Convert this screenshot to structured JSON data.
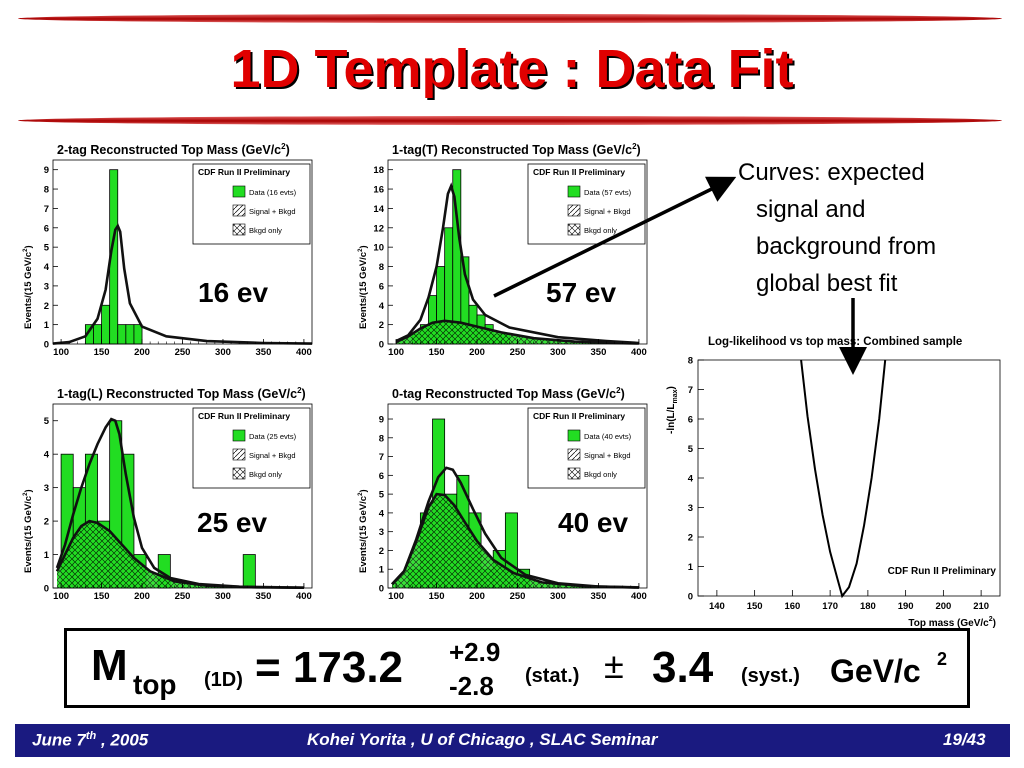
{
  "slide": {
    "title": "1D Template : Data Fit",
    "annotation_lines": [
      "Curves: expected",
      "signal and",
      "background from",
      "global best fit"
    ]
  },
  "colors": {
    "title": "#e00000",
    "rule": "#b00000",
    "footer_bg": "#1a1a80",
    "hist_fill": "#22dd22"
  },
  "legend": {
    "stamp": "CDF Run II Preliminary",
    "signal_bkgd": "Signal + Bkgd",
    "bkgd_only": "Bkgd only"
  },
  "panels": [
    {
      "title": "2-tag Reconstructed Top Mass (GeV/c",
      "title_sup": "2",
      "title_close": ")",
      "ylabel": "Events/(15 GeV/c",
      "ylabel_sup": "2",
      "ylabel_close": ")",
      "data_legend": "Data (16 evts)",
      "count_label": "16 ev"
    },
    {
      "title": "1-tag(T) Reconstructed Top Mass (GeV/c",
      "title_sup": "2",
      "title_close": ")",
      "ylabel": "Events/(15 GeV/c",
      "ylabel_sup": "2",
      "ylabel_close": ")",
      "data_legend": "Data (57 evts)",
      "count_label": "57 ev"
    },
    {
      "title": "1-tag(L) Reconstructed Top Mass (GeV/c",
      "title_sup": "2",
      "title_close": ")",
      "ylabel": "Events/(15 GeV/c",
      "ylabel_sup": "2",
      "ylabel_close": ")",
      "data_legend": "Data (25 evts)",
      "count_label": "25 ev"
    },
    {
      "title": "0-tag Reconstructed Top Mass (GeV/c",
      "title_sup": "2",
      "title_close": ")",
      "ylabel": "Events/(15 GeV/c",
      "ylabel_sup": "2",
      "ylabel_close": ")",
      "data_legend": "Data (40 evts)",
      "count_label": "40 ev"
    }
  ],
  "likelihood": {
    "title": "Log-likelihood vs top mass: Combined sample",
    "ylabel": "-ln(L/L",
    "ylabel_sub": "max",
    "ylabel_close": ")",
    "xlabel": "Top mass (GeV/c",
    "xlabel_sup": "2",
    "xlabel_close": ")",
    "stamp": "CDF Run II Preliminary"
  },
  "result": {
    "symbol": "M",
    "subscript": "top",
    "method": "(1D)",
    "equals_value": "= 173.2",
    "stat_plus": "+2.9",
    "stat_minus": "-2.8",
    "stat_label": "(stat.)",
    "plusminus": "±",
    "syst_value": "3.4",
    "syst_label": "(syst.)",
    "unit": "GeV/c",
    "unit_sup": "2"
  },
  "footer": {
    "date_prefix": "June 7",
    "date_sup": "th",
    "date_suffix": " , 2005",
    "center": "Kohei Yorita , U of Chicago , SLAC Seminar",
    "page": "19/43"
  },
  "chart_data": [
    {
      "type": "bar",
      "title": "2-tag Reconstructed Top Mass (GeV/c2)",
      "xlabel": "",
      "ylabel": "Events/(15 GeV/c2)",
      "xlim": [
        90,
        410
      ],
      "ylim": [
        0,
        9.5
      ],
      "x_ticks": [
        100,
        150,
        200,
        250,
        300,
        350,
        400
      ],
      "y_ticks": [
        0,
        1,
        2,
        3,
        4,
        5,
        6,
        7,
        8,
        9
      ],
      "bin_width": 10,
      "bin_edges_start": [
        130,
        140,
        150,
        160,
        170,
        180,
        190
      ],
      "series": [
        {
          "name": "Data (16 evts)",
          "values": [
            1,
            1,
            2,
            9,
            1,
            1,
            1
          ]
        }
      ],
      "curves": [
        {
          "name": "Signal + Bkgd",
          "x": [
            90,
            110,
            130,
            145,
            155,
            162,
            167,
            170,
            173,
            178,
            185,
            200,
            230,
            280,
            350,
            410
          ],
          "y": [
            0.02,
            0.1,
            0.4,
            1.3,
            2.8,
            4.8,
            5.9,
            6.1,
            5.8,
            3.9,
            2.1,
            0.9,
            0.4,
            0.15,
            0.05,
            0.02
          ]
        }
      ],
      "legend_position": "top-right"
    },
    {
      "type": "bar",
      "title": "1-tag(T) Reconstructed Top Mass (GeV/c2)",
      "xlabel": "",
      "ylabel": "Events/(15 GeV/c2)",
      "xlim": [
        90,
        410
      ],
      "ylim": [
        0,
        19
      ],
      "x_ticks": [
        100,
        150,
        200,
        250,
        300,
        350,
        400
      ],
      "y_ticks": [
        0,
        2,
        4,
        6,
        8,
        10,
        12,
        14,
        16,
        18
      ],
      "bin_width": 10,
      "bin_edges_start": [
        120,
        130,
        140,
        150,
        160,
        170,
        180,
        190,
        200,
        210,
        220,
        230
      ],
      "series": [
        {
          "name": "Data (57 evts)",
          "values": [
            1,
            2,
            5,
            8,
            12,
            18,
            9,
            4,
            3,
            2,
            1,
            1
          ]
        }
      ],
      "curves": [
        {
          "name": "Signal + Bkgd",
          "x": [
            100,
            115,
            130,
            140,
            150,
            158,
            164,
            168,
            172,
            178,
            185,
            195,
            210,
            240,
            300,
            360,
            400
          ],
          "y": [
            0.3,
            0.9,
            2.5,
            4.8,
            8.0,
            12.0,
            15.5,
            16.3,
            15.2,
            11.0,
            7.2,
            4.6,
            3.0,
            1.7,
            0.7,
            0.3,
            0.1
          ]
        },
        {
          "name": "Bkgd only",
          "x": [
            100,
            115,
            130,
            145,
            160,
            180,
            200,
            230,
            270,
            320,
            380,
            400
          ],
          "y": [
            0.2,
            0.8,
            1.6,
            2.2,
            2.4,
            2.2,
            1.8,
            1.2,
            0.6,
            0.25,
            0.08,
            0.05
          ]
        }
      ],
      "legend_position": "top-right"
    },
    {
      "type": "bar",
      "title": "1-tag(L) Reconstructed Top Mass (GeV/c2)",
      "xlabel": "",
      "ylabel": "Events/(15 GeV/c2)",
      "xlim": [
        90,
        410
      ],
      "ylim": [
        0,
        5.5
      ],
      "x_ticks": [
        100,
        150,
        200,
        250,
        300,
        350,
        400
      ],
      "y_ticks": [
        0,
        1,
        2,
        3,
        4,
        5
      ],
      "bin_width": 15,
      "bin_edges_start": [
        100,
        115,
        130,
        145,
        160,
        175,
        190,
        205,
        220,
        235,
        250,
        265,
        280,
        295,
        310,
        325
      ],
      "series": [
        {
          "name": "Data (25 evts)",
          "values": [
            4,
            3,
            4,
            2,
            5,
            4,
            1,
            0,
            1,
            0,
            0,
            0,
            0,
            0,
            0,
            1
          ]
        }
      ],
      "curves": [
        {
          "name": "Signal + Bkgd",
          "x": [
            95,
            105,
            115,
            125,
            135,
            145,
            155,
            162,
            167,
            172,
            180,
            190,
            200,
            215,
            235,
            270,
            320,
            400
          ],
          "y": [
            0.6,
            1.3,
            2.2,
            3.0,
            3.7,
            4.3,
            4.8,
            5.05,
            5.0,
            4.6,
            3.4,
            2.1,
            1.2,
            0.6,
            0.3,
            0.12,
            0.04,
            0.01
          ]
        },
        {
          "name": "Bkgd only",
          "x": [
            95,
            105,
            115,
            125,
            135,
            145,
            160,
            175,
            190,
            210,
            240,
            280,
            340,
            400
          ],
          "y": [
            0.5,
            1.0,
            1.5,
            1.85,
            2.0,
            1.95,
            1.7,
            1.3,
            0.9,
            0.5,
            0.2,
            0.07,
            0.02,
            0.01
          ]
        }
      ],
      "legend_position": "top-right"
    },
    {
      "type": "bar",
      "title": "0-tag Reconstructed Top Mass (GeV/c2)",
      "xlabel": "",
      "ylabel": "Events/(15 GeV/c2)",
      "xlim": [
        90,
        410
      ],
      "ylim": [
        0,
        9.8
      ],
      "x_ticks": [
        100,
        150,
        200,
        250,
        300,
        350,
        400
      ],
      "y_ticks": [
        0,
        1,
        2,
        3,
        4,
        5,
        6,
        7,
        8,
        9
      ],
      "bin_width": 15,
      "bin_edges_start": [
        115,
        130,
        145,
        160,
        175,
        190,
        205,
        220,
        235,
        250
      ],
      "series": [
        {
          "name": "Data (40 evts)",
          "values": [
            1,
            4,
            9,
            5,
            6,
            4,
            1,
            2,
            4,
            1
          ]
        }
      ],
      "curves": [
        {
          "name": "Signal + Bkgd",
          "x": [
            95,
            110,
            125,
            140,
            152,
            162,
            170,
            180,
            195,
            210,
            230,
            260,
            300,
            350,
            400
          ],
          "y": [
            0.2,
            0.9,
            2.6,
            4.6,
            5.9,
            6.4,
            6.3,
            5.6,
            4.2,
            2.9,
            1.6,
            0.7,
            0.25,
            0.08,
            0.03
          ]
        },
        {
          "name": "Bkgd only",
          "x": [
            95,
            110,
            125,
            140,
            150,
            160,
            172,
            185,
            200,
            220,
            245,
            280,
            330,
            400
          ],
          "y": [
            0.2,
            0.9,
            2.5,
            4.3,
            5.0,
            4.95,
            4.4,
            3.5,
            2.5,
            1.5,
            0.8,
            0.3,
            0.1,
            0.02
          ]
        }
      ],
      "legend_position": "top-right"
    },
    {
      "type": "line",
      "title": "Log-likelihood vs top mass: Combined sample",
      "xlabel": "Top mass (GeV/c2)",
      "ylabel": "-ln(L/Lmax)",
      "xlim": [
        135,
        215
      ],
      "ylim": [
        0,
        8
      ],
      "x_ticks": [
        140,
        150,
        160,
        170,
        180,
        190,
        200,
        210
      ],
      "y_ticks": [
        0,
        1,
        2,
        3,
        4,
        5,
        6,
        7,
        8
      ],
      "grid": false,
      "series": [
        {
          "x": [
            162.3,
            164,
            166,
            168,
            170,
            172,
            173.2,
            175,
            177,
            179,
            181,
            183,
            184.6
          ],
          "y": [
            8,
            6.1,
            4.3,
            2.75,
            1.5,
            0.55,
            0,
            0.3,
            1.1,
            2.4,
            4.0,
            6.0,
            8
          ]
        }
      ],
      "min_at": 173.2,
      "legend_position": "none"
    }
  ]
}
